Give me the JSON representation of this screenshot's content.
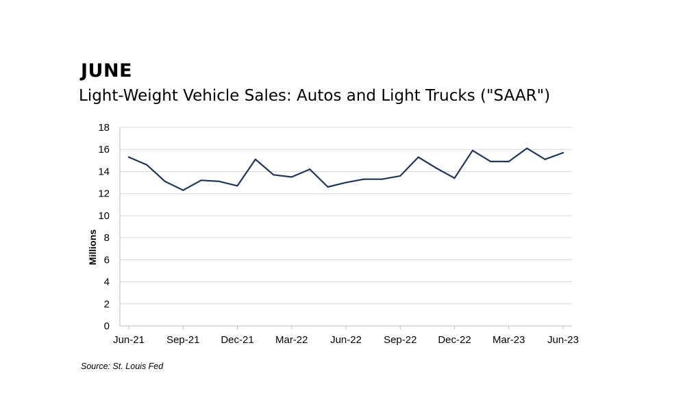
{
  "header": {
    "heading": "JUNE",
    "subtitle": "Light-Weight Vehicle Sales: Autos and Light Trucks (\"SAAR\")"
  },
  "source": "Source: St. Louis Fed",
  "colors": {
    "line": "#1f3557",
    "grid": "#d9d9d9",
    "axis": "#bfbfbf"
  },
  "chart_data": {
    "type": "line",
    "title": "Light-Weight Vehicle Sales: Autos and Light Trucks (\"SAAR\")",
    "xlabel": "",
    "ylabel": "Millions",
    "ylim": [
      0,
      18
    ],
    "yticks": [
      0,
      2,
      4,
      6,
      8,
      10,
      12,
      14,
      16,
      18
    ],
    "grid": "horizontal",
    "x": [
      "Jun-21",
      "Jul-21",
      "Aug-21",
      "Sep-21",
      "Oct-21",
      "Nov-21",
      "Dec-21",
      "Jan-22",
      "Feb-22",
      "Mar-22",
      "Apr-22",
      "May-22",
      "Jun-22",
      "Jul-22",
      "Aug-22",
      "Sep-22",
      "Oct-22",
      "Nov-22",
      "Dec-22",
      "Jan-23",
      "Feb-23",
      "Mar-23",
      "Apr-23",
      "May-23",
      "Jun-23"
    ],
    "xticklabels": [
      "Jun-21",
      "Sep-21",
      "Dec-21",
      "Mar-22",
      "Jun-22",
      "Sep-22",
      "Dec-22",
      "Mar-23",
      "Jun-23"
    ],
    "series": [
      {
        "values": [
          15.3,
          14.6,
          13.1,
          12.3,
          13.2,
          13.1,
          12.7,
          15.1,
          13.7,
          13.5,
          14.2,
          12.6,
          13.0,
          13.3,
          13.3,
          13.6,
          15.3,
          14.3,
          13.4,
          15.9,
          14.9,
          14.9,
          16.1,
          15.1,
          15.7
        ]
      }
    ]
  }
}
